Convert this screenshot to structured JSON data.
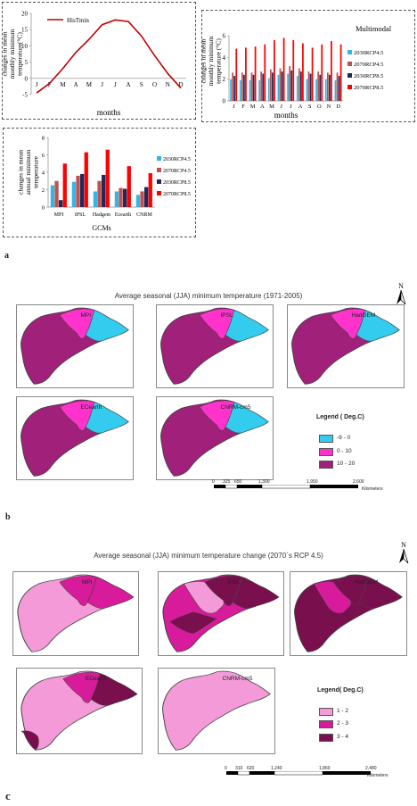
{
  "colors": {
    "hist_line": "#c00000",
    "s2030rcp45": "#33b5e5",
    "s2070rcp45": "#c0504d",
    "s2030rcp85": "#1f2a5c",
    "s2070rcp85": "#ff0000",
    "map_cyan": "#33ccee",
    "map_pink": "#ff33cc",
    "map_purple": "#a0207a",
    "map_light_pink": "#f49ad8",
    "map_mid_magenta": "#d81b9a",
    "map_dark_magenta": "#7a0f4e"
  },
  "panel_a": {
    "label": "a",
    "chart_hist": {
      "legend": "HisTmin",
      "ylabel": "changes in mean monthly minimum temperature(°C)",
      "xlabel": "months"
    },
    "chart_multi": {
      "title": "Multimodal",
      "ylabel": "changes in mean monthly minimum temperature (°C)",
      "xlabel": "months"
    },
    "chart_annual": {
      "ylabel": "changes in mean annual minimum temperature",
      "xlabel": "GCMs"
    }
  },
  "panel_b": {
    "label": "b",
    "title": "Average seasonal (JJA) minimum temperature (1971-2005)",
    "maps": [
      "MPI",
      "IPSL",
      "HadGEM",
      "ECearth",
      "CNRM-cm5"
    ],
    "legend_title": "Legend ( Deg.C)",
    "legend_items": [
      "-9 - 0",
      "0 - 10",
      "10 - 20"
    ],
    "scale_ticks": [
      "0",
      "325",
      "650",
      "1,300",
      "1,950",
      "2,600"
    ],
    "scale_unit": "Kilometers",
    "north": "N"
  },
  "panel_c": {
    "label": "c",
    "title": "Average seasonal (JJA) minimum temperature change (2070`s RCP 4.5)",
    "maps": [
      "MPI",
      "IPSL",
      "HadGEM",
      "ECearth",
      "CNRM-cm5"
    ],
    "legend_title": "Legend( Deg.C)",
    "legend_items": [
      "1 - 2",
      "2 - 3",
      "3 - 4"
    ],
    "scale_ticks": [
      "0",
      "310",
      "620",
      "1,240",
      "1,860",
      "2,480"
    ],
    "scale_unit": "Kilometers",
    "north": "N"
  },
  "chart_data": [
    {
      "type": "line",
      "x": [
        "J",
        "F",
        "M",
        "A",
        "M",
        "J",
        "J",
        "A",
        "S",
        "O",
        "N",
        "D"
      ],
      "series": [
        {
          "name": "HisTmin",
          "values": [
            -4.5,
            -1.5,
            3,
            8,
            12,
            16.5,
            18,
            17.5,
            13,
            7,
            1.5,
            -3
          ]
        }
      ],
      "xlabel": "months",
      "ylabel": "changes in mean monthly minimum temperature(°C)",
      "ylim": [
        -5,
        20
      ],
      "yticks": [
        -5,
        0,
        5,
        10,
        15,
        20
      ],
      "legend": "top-left"
    },
    {
      "type": "bar",
      "title": "Multimodal",
      "categories": [
        "J",
        "F",
        "M",
        "A",
        "M",
        "J",
        "J",
        "A",
        "S",
        "O",
        "N",
        "D"
      ],
      "series": [
        {
          "name": "2030RCP4.5",
          "values": [
            2.0,
            1.9,
            1.9,
            1.9,
            2.1,
            2.4,
            2.5,
            2.3,
            2.0,
            2.0,
            2.0,
            1.9
          ]
        },
        {
          "name": "2070RCP4.5",
          "values": [
            2.6,
            2.6,
            2.6,
            2.7,
            2.9,
            3.0,
            3.2,
            3.0,
            2.7,
            2.7,
            2.6,
            2.6
          ]
        },
        {
          "name": "2030RCP8.5",
          "values": [
            2.3,
            2.4,
            2.4,
            2.5,
            2.6,
            2.7,
            2.8,
            2.7,
            2.5,
            2.4,
            2.4,
            2.3
          ]
        },
        {
          "name": "2070RCP8.5",
          "values": [
            4.8,
            4.9,
            5.0,
            5.2,
            5.6,
            5.8,
            5.6,
            5.3,
            4.9,
            5.2,
            5.5,
            5.2
          ]
        }
      ],
      "xlabel": "months",
      "ylabel": "changes in mean monthly minimum temperature (°C)",
      "ylim": [
        0,
        6
      ],
      "yticks": [
        0,
        2,
        4,
        6
      ],
      "legend": "right"
    },
    {
      "type": "bar",
      "categories": [
        "MPI",
        "IPSL",
        "Hadgem",
        "Ecearth",
        "CNRM"
      ],
      "series": [
        {
          "name": "2030RCP4.5",
          "values": [
            2.5,
            2.9,
            1.8,
            1.8,
            1.4
          ]
        },
        {
          "name": "2070RCP4.5",
          "values": [
            3.0,
            3.6,
            3.0,
            2.2,
            1.8
          ]
        },
        {
          "name": "2030RCP8.5",
          "values": [
            0.8,
            3.8,
            3.7,
            2.1,
            2.3
          ]
        },
        {
          "name": "2070RCP8.5",
          "values": [
            5.0,
            6.3,
            6.6,
            4.7,
            3.9
          ]
        }
      ],
      "xlabel": "GCMs",
      "ylabel": "changes in mean annual minimum temperature",
      "ylim": [
        0,
        8
      ],
      "yticks": [
        0,
        2,
        4,
        6,
        8
      ],
      "legend": "right"
    }
  ]
}
